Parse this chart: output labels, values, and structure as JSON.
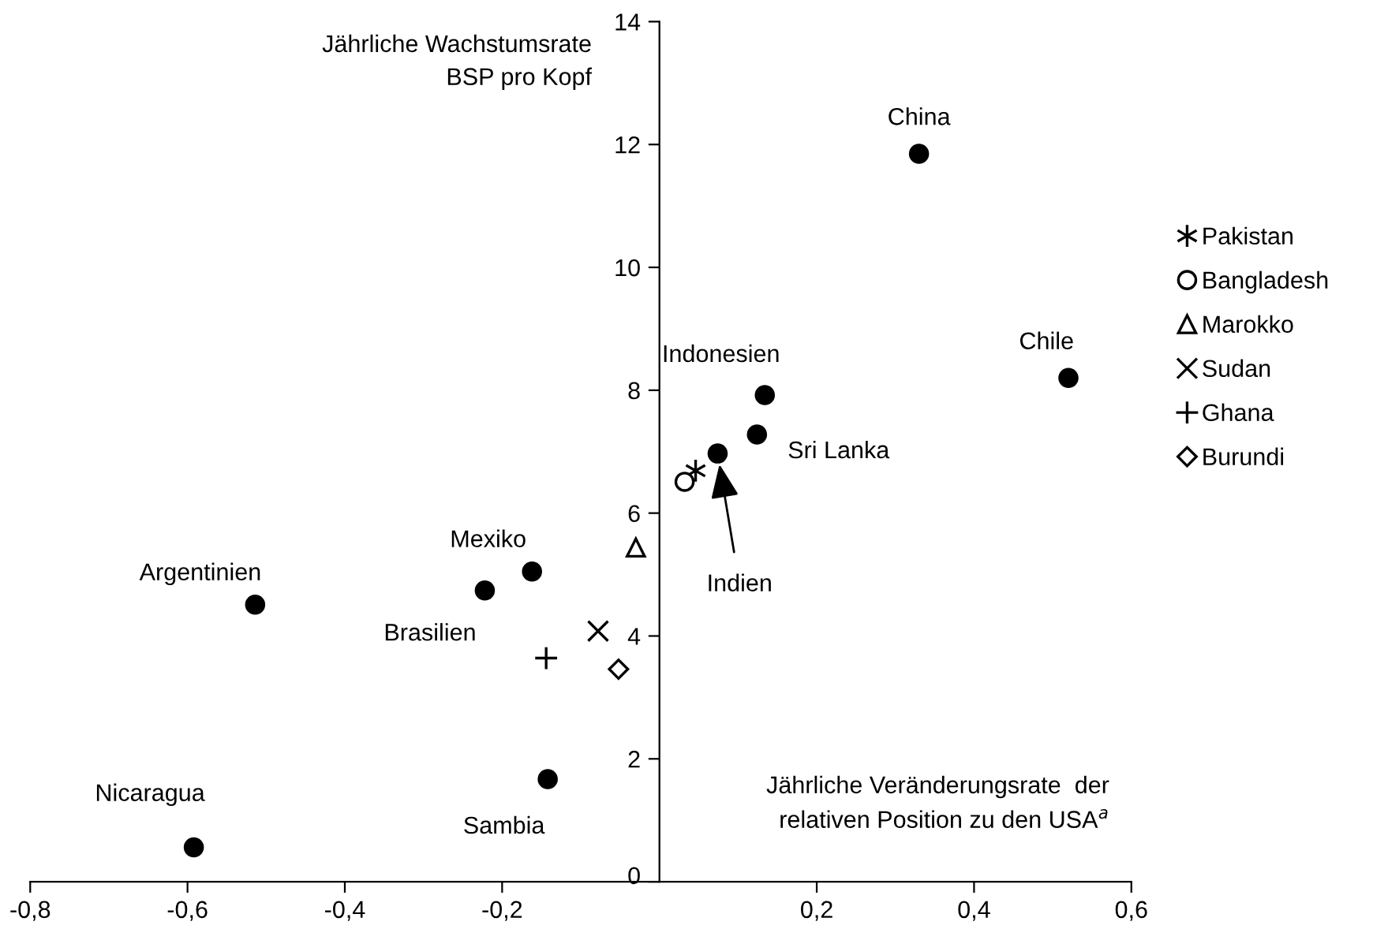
{
  "chart_data": {
    "type": "scatter",
    "xlabel": "Jährliche Veränderungsrate  der\nrelativen Position zu den USA$^{a}$",
    "ylabel": "Jährliche Wachstumsrate\nBSP pro Kopf",
    "xlim": [
      -0.8,
      0.6
    ],
    "xticks": [
      {
        "value": -0.8,
        "label": "-0,8"
      },
      {
        "value": -0.6,
        "label": "-0,6"
      },
      {
        "value": -0.4,
        "label": "-0,4"
      },
      {
        "value": -0.2,
        "label": "-0,2"
      },
      {
        "value": 0.2,
        "label": "0,2"
      },
      {
        "value": 0.4,
        "label": "0,4"
      },
      {
        "value": 0.6,
        "label": "0,6"
      }
    ],
    "ylim": [
      0,
      14
    ],
    "yticks": [
      0,
      2,
      4,
      6,
      8,
      10,
      12,
      14
    ],
    "grid": false,
    "legend": "right",
    "annotations": [
      {
        "text": "Indien",
        "x": 0.074,
        "y": 6.97
      }
    ],
    "series": [
      {
        "name": "China",
        "color": "#000000",
        "marker": "circle",
        "x": [
          0.33
        ],
        "values": [
          11.85
        ]
      },
      {
        "name": "Chile",
        "color": "#000000",
        "marker": "circle",
        "x": [
          0.52
        ],
        "values": [
          8.2
        ]
      },
      {
        "name": "Indonesien",
        "color": "#000000",
        "marker": "circle",
        "x": [
          0.134
        ],
        "values": [
          7.92
        ]
      },
      {
        "name": "Sri Lanka",
        "color": "#000000",
        "marker": "circle",
        "x": [
          0.124
        ],
        "values": [
          7.28
        ]
      },
      {
        "color": "#000000",
        "marker": "circle",
        "x": [
          0.074
        ],
        "values": [
          6.97
        ]
      },
      {
        "name": "Mexiko",
        "color": "#000000",
        "marker": "circle",
        "x": [
          -0.162
        ],
        "values": [
          5.05
        ]
      },
      {
        "name": "Brasilien",
        "color": "#000000",
        "marker": "circle",
        "x": [
          -0.222
        ],
        "values": [
          4.74
        ]
      },
      {
        "name": "Argentinien",
        "color": "#000000",
        "marker": "circle",
        "x": [
          -0.514
        ],
        "values": [
          4.51
        ]
      },
      {
        "name": "Sambia",
        "color": "#000000",
        "marker": "circle",
        "x": [
          -0.142
        ],
        "values": [
          1.67
        ]
      },
      {
        "name": "Nicaragua",
        "color": "#000000",
        "marker": "circle",
        "x": [
          -0.592
        ],
        "values": [
          0.56
        ]
      },
      {
        "name": "Pakistan",
        "color": "#000000",
        "marker": "cross",
        "x": [
          0.046
        ],
        "values": [
          6.69
        ]
      },
      {
        "name": "Bangladesh",
        "color": "#000000",
        "marker": "circle_open",
        "x": [
          0.032
        ],
        "values": [
          6.51
        ]
      },
      {
        "name": "Marokko",
        "color": "#000000",
        "marker": "triangle_open",
        "x": [
          -0.03
        ],
        "values": [
          5.44
        ]
      },
      {
        "name": "Sudan",
        "color": "#000000",
        "marker": "x",
        "x": [
          -0.078
        ],
        "values": [
          4.08
        ]
      },
      {
        "name": "Ghana",
        "color": "#000000",
        "marker": "plus",
        "x": [
          -0.144
        ],
        "values": [
          3.64
        ]
      },
      {
        "name": "Burundi",
        "color": "#000000",
        "marker": "diamond_open",
        "x": [
          -0.052
        ],
        "values": [
          3.46
        ]
      }
    ]
  }
}
